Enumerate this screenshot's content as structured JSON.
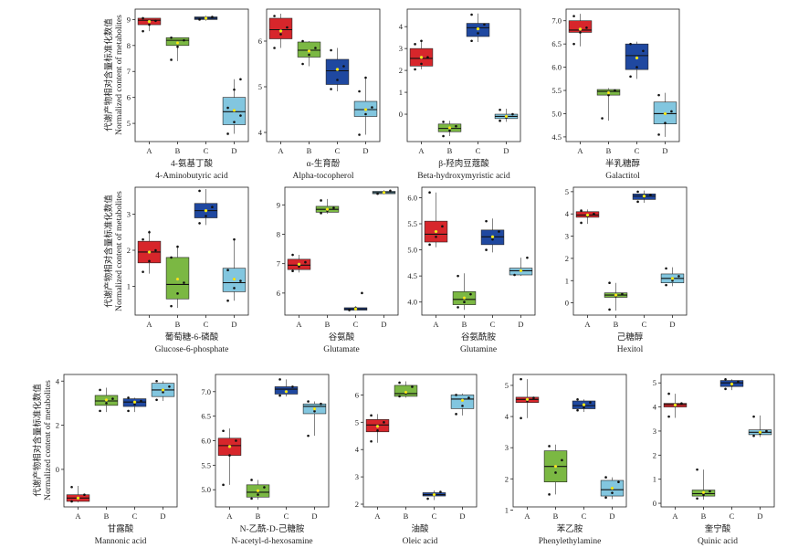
{
  "ylabel_cn": "代谢产物相对含量标准化数值",
  "ylabel_en": "Normalized content of metabolites",
  "groups": [
    "A",
    "B",
    "C",
    "D"
  ],
  "colors": {
    "A": "#d7262b",
    "B": "#7bb843",
    "C": "#1f48a0",
    "D": "#82c6df",
    "mean_marker": "#fff200",
    "points": "#111111"
  },
  "chart_data": [
    {
      "type": "box",
      "title_cn": "4-氨基丁酸",
      "title_en": "4-Aminobutyric acid",
      "yticks": [
        5,
        6,
        7,
        8,
        9
      ],
      "ylim": [
        4.3,
        9.4
      ],
      "boxes": [
        {
          "group": "A",
          "q1": 8.8,
          "median": 8.97,
          "q3": 9.05,
          "lo": 8.55,
          "hi": 9.05,
          "mean": 8.92,
          "points": [
            8.55,
            8.8,
            8.95,
            9.05
          ]
        },
        {
          "group": "B",
          "q1": 8.0,
          "median": 8.2,
          "q3": 8.3,
          "lo": 7.4,
          "hi": 8.3,
          "mean": 8.1,
          "points": [
            7.45,
            7.95,
            8.2,
            8.3
          ]
        },
        {
          "group": "C",
          "q1": 9.0,
          "median": 9.05,
          "q3": 9.1,
          "lo": 8.95,
          "hi": 9.15,
          "mean": 9.05,
          "points": [
            9.0,
            9.05,
            9.1
          ]
        },
        {
          "group": "D",
          "q1": 4.95,
          "median": 5.45,
          "q3": 6.0,
          "lo": 4.6,
          "hi": 6.7,
          "mean": 5.5,
          "points": [
            4.6,
            5.05,
            5.3,
            5.6,
            6.3,
            6.7
          ]
        }
      ]
    },
    {
      "type": "box",
      "title_cn": "α-生育酚",
      "title_en": "Alpha-tocopherol",
      "yticks": [
        4,
        5,
        6
      ],
      "ylim": [
        3.8,
        6.7
      ],
      "boxes": [
        {
          "group": "A",
          "q1": 6.05,
          "median": 6.25,
          "q3": 6.5,
          "lo": 5.85,
          "hi": 6.6,
          "mean": 6.22,
          "points": [
            5.85,
            6.15,
            6.3,
            6.55
          ]
        },
        {
          "group": "B",
          "q1": 5.65,
          "median": 5.8,
          "q3": 5.98,
          "lo": 5.45,
          "hi": 6.0,
          "mean": 5.78,
          "points": [
            5.5,
            5.7,
            5.85,
            6.0
          ]
        },
        {
          "group": "C",
          "q1": 5.05,
          "median": 5.35,
          "q3": 5.6,
          "lo": 4.9,
          "hi": 5.85,
          "mean": 5.38,
          "points": [
            4.95,
            5.15,
            5.45,
            5.8
          ]
        },
        {
          "group": "D",
          "q1": 4.35,
          "median": 4.5,
          "q3": 4.68,
          "lo": 3.95,
          "hi": 5.2,
          "mean": 4.5,
          "points": [
            3.95,
            4.4,
            4.55,
            4.9,
            5.2
          ]
        }
      ]
    },
    {
      "type": "box",
      "title_cn": "β-羟肉豆蔻酸",
      "title_en": "Beta-hydroxymyristic acid",
      "yticks": [
        0,
        1,
        2,
        3,
        4
      ],
      "ylim": [
        -1.25,
        4.8
      ],
      "boxes": [
        {
          "group": "A",
          "q1": 2.2,
          "median": 2.55,
          "q3": 3.0,
          "lo": 2.05,
          "hi": 3.35,
          "mean": 2.6,
          "points": [
            2.05,
            2.3,
            2.6,
            3.2,
            3.35
          ]
        },
        {
          "group": "B",
          "q1": -0.8,
          "median": -0.65,
          "q3": -0.45,
          "lo": -1.0,
          "hi": -0.3,
          "mean": -0.62,
          "points": [
            -1.0,
            -0.75,
            -0.55,
            -0.35
          ]
        },
        {
          "group": "C",
          "q1": 3.55,
          "median": 3.95,
          "q3": 4.15,
          "lo": 3.3,
          "hi": 4.6,
          "mean": 3.9,
          "points": [
            3.35,
            3.7,
            4.1,
            4.55
          ]
        },
        {
          "group": "D",
          "q1": -0.2,
          "median": -0.1,
          "q3": 0.0,
          "lo": -0.35,
          "hi": 0.25,
          "mean": -0.1,
          "points": [
            -0.3,
            -0.15,
            0.0,
            0.2
          ]
        }
      ]
    },
    {
      "type": "box",
      "title_cn": "半乳糖醇",
      "title_en": "Galactitol",
      "yticks": [
        4.5,
        5.0,
        5.5,
        6.0,
        6.5,
        7.0
      ],
      "ylim": [
        4.4,
        7.25
      ],
      "boxes": [
        {
          "group": "A",
          "q1": 6.75,
          "median": 6.8,
          "q3": 7.0,
          "lo": 6.45,
          "hi": 7.15,
          "mean": 6.82,
          "points": [
            6.5,
            6.75,
            6.85,
            7.1
          ]
        },
        {
          "group": "B",
          "q1": 5.4,
          "median": 5.48,
          "q3": 5.52,
          "lo": 4.85,
          "hi": 5.55,
          "mean": 5.45,
          "points": [
            4.9,
            5.4,
            5.5
          ]
        },
        {
          "group": "C",
          "q1": 5.95,
          "median": 6.25,
          "q3": 6.5,
          "lo": 5.75,
          "hi": 6.55,
          "mean": 6.2,
          "points": [
            5.8,
            6.0,
            6.35,
            6.5
          ]
        },
        {
          "group": "D",
          "q1": 4.78,
          "median": 5.0,
          "q3": 5.25,
          "lo": 4.5,
          "hi": 5.45,
          "mean": 5.0,
          "points": [
            4.55,
            4.8,
            5.05,
            5.4
          ]
        }
      ]
    },
    {
      "type": "box",
      "title_cn": "葡萄糖-6-磷酸",
      "title_en": "Glucose-6-phosphate",
      "yticks": [
        1,
        2,
        3
      ],
      "ylim": [
        0.2,
        3.75
      ],
      "boxes": [
        {
          "group": "A",
          "q1": 1.65,
          "median": 1.95,
          "q3": 2.25,
          "lo": 1.35,
          "hi": 2.55,
          "mean": 1.95,
          "points": [
            1.4,
            1.7,
            2.0,
            2.3,
            2.5
          ]
        },
        {
          "group": "B",
          "q1": 0.65,
          "median": 1.05,
          "q3": 1.8,
          "lo": 0.4,
          "hi": 2.1,
          "mean": 1.2,
          "points": [
            0.45,
            0.8,
            1.1,
            1.8,
            2.1
          ]
        },
        {
          "group": "C",
          "q1": 2.9,
          "median": 3.1,
          "q3": 3.3,
          "lo": 2.7,
          "hi": 3.7,
          "mean": 3.1,
          "points": [
            2.75,
            2.95,
            3.2,
            3.65
          ]
        },
        {
          "group": "D",
          "q1": 0.85,
          "median": 1.1,
          "q3": 1.5,
          "lo": 0.6,
          "hi": 2.3,
          "mean": 1.2,
          "points": [
            0.6,
            0.95,
            1.15,
            1.45,
            2.3
          ]
        }
      ]
    },
    {
      "type": "box",
      "title_cn": "谷氨酸",
      "title_en": "Glutamate",
      "yticks": [
        6,
        7,
        8,
        9
      ],
      "ylim": [
        5.25,
        9.6
      ],
      "boxes": [
        {
          "group": "A",
          "q1": 6.8,
          "median": 6.95,
          "q3": 7.15,
          "lo": 6.7,
          "hi": 7.3,
          "mean": 6.98,
          "points": [
            6.75,
            6.9,
            7.05,
            7.3
          ]
        },
        {
          "group": "B",
          "q1": 8.75,
          "median": 8.85,
          "q3": 8.95,
          "lo": 8.7,
          "hi": 9.2,
          "mean": 8.85,
          "points": [
            8.72,
            8.8,
            8.9,
            9.15
          ]
        },
        {
          "group": "C",
          "q1": 5.42,
          "median": 5.46,
          "q3": 5.5,
          "lo": 5.4,
          "hi": 5.55,
          "mean": 5.46,
          "points": [
            5.42,
            5.5,
            6.0
          ]
        },
        {
          "group": "D",
          "q1": 9.38,
          "median": 9.42,
          "q3": 9.46,
          "lo": 9.35,
          "hi": 9.5,
          "mean": 9.42,
          "points": [
            9.38,
            9.44,
            9.48
          ]
        }
      ]
    },
    {
      "type": "box",
      "title_cn": "谷氨酰胺",
      "title_en": "Glutamine",
      "yticks": [
        4.0,
        4.5,
        5.0,
        5.5,
        6.0
      ],
      "ylim": [
        3.75,
        6.2
      ],
      "boxes": [
        {
          "group": "A",
          "q1": 5.15,
          "median": 5.3,
          "q3": 5.55,
          "lo": 5.05,
          "hi": 6.1,
          "mean": 5.35,
          "points": [
            5.1,
            5.25,
            5.45,
            6.1
          ]
        },
        {
          "group": "B",
          "q1": 3.95,
          "median": 4.05,
          "q3": 4.2,
          "lo": 3.85,
          "hi": 4.55,
          "mean": 4.08,
          "points": [
            3.9,
            4.0,
            4.15,
            4.5
          ]
        },
        {
          "group": "C",
          "q1": 5.1,
          "median": 5.25,
          "q3": 5.38,
          "lo": 4.95,
          "hi": 5.6,
          "mean": 5.25,
          "points": [
            5.0,
            5.2,
            5.35,
            5.55
          ]
        },
        {
          "group": "D",
          "q1": 4.52,
          "median": 4.6,
          "q3": 4.65,
          "lo": 4.5,
          "hi": 4.85,
          "mean": 4.6,
          "points": [
            4.52,
            4.6,
            4.85
          ]
        }
      ]
    },
    {
      "type": "box",
      "title_cn": "己糖醇",
      "title_en": "Hexitol",
      "yticks": [
        0,
        1,
        2,
        3,
        4,
        5
      ],
      "ylim": [
        -0.55,
        5.2
      ],
      "boxes": [
        {
          "group": "A",
          "q1": 3.85,
          "median": 3.95,
          "q3": 4.1,
          "lo": 3.55,
          "hi": 4.2,
          "mean": 3.95,
          "points": [
            3.6,
            3.9,
            4.0,
            4.15
          ]
        },
        {
          "group": "B",
          "q1": 0.25,
          "median": 0.35,
          "q3": 0.45,
          "lo": -0.35,
          "hi": 0.9,
          "mean": 0.35,
          "points": [
            -0.3,
            0.3,
            0.4,
            0.9
          ]
        },
        {
          "group": "C",
          "q1": 4.65,
          "median": 4.8,
          "q3": 4.9,
          "lo": 4.5,
          "hi": 5.05,
          "mean": 4.8,
          "points": [
            4.55,
            4.75,
            4.85,
            5.0
          ]
        },
        {
          "group": "D",
          "q1": 0.9,
          "median": 1.1,
          "q3": 1.3,
          "lo": 0.75,
          "hi": 1.6,
          "mean": 1.1,
          "points": [
            0.8,
            1.0,
            1.2,
            1.55
          ]
        }
      ]
    },
    {
      "type": "box",
      "title_cn": "甘露酸",
      "title_en": "Mannonic acid",
      "yticks": [
        0,
        2,
        4
      ],
      "ylim": [
        -1.7,
        4.3
      ],
      "boxes": [
        {
          "group": "A",
          "q1": -1.45,
          "median": -1.3,
          "q3": -1.15,
          "lo": -1.5,
          "hi": -0.75,
          "mean": -1.3,
          "points": [
            -1.45,
            -1.3,
            -1.15,
            -0.8
          ]
        },
        {
          "group": "B",
          "q1": 2.9,
          "median": 3.1,
          "q3": 3.35,
          "lo": 2.6,
          "hi": 3.7,
          "mean": 3.15,
          "points": [
            2.65,
            3.0,
            3.2,
            3.6
          ]
        },
        {
          "group": "C",
          "q1": 2.85,
          "median": 3.05,
          "q3": 3.2,
          "lo": 2.6,
          "hi": 3.25,
          "mean": 3.05,
          "points": [
            2.65,
            2.95,
            3.1,
            3.25
          ]
        },
        {
          "group": "D",
          "q1": 3.3,
          "median": 3.6,
          "q3": 3.9,
          "lo": 3.1,
          "hi": 4.0,
          "mean": 3.6,
          "points": [
            3.15,
            3.5,
            3.75,
            4.0
          ]
        }
      ]
    },
    {
      "type": "box",
      "title_cn": "N-乙酰-D-己糖胺",
      "title_en": "N-acetyl-d-hexosamine",
      "yticks": [
        5.0,
        5.5,
        6.0,
        6.5,
        7.0
      ],
      "ylim": [
        4.65,
        7.35
      ],
      "boxes": [
        {
          "group": "A",
          "q1": 5.7,
          "median": 5.9,
          "q3": 6.05,
          "lo": 5.1,
          "hi": 6.25,
          "mean": 5.88,
          "points": [
            5.1,
            5.7,
            6.0,
            6.2
          ]
        },
        {
          "group": "B",
          "q1": 4.85,
          "median": 4.95,
          "q3": 5.1,
          "lo": 4.8,
          "hi": 5.2,
          "mean": 4.98,
          "points": [
            4.82,
            4.9,
            5.05,
            5.2
          ]
        },
        {
          "group": "C",
          "q1": 6.95,
          "median": 7.05,
          "q3": 7.1,
          "lo": 6.9,
          "hi": 7.25,
          "mean": 7.0,
          "points": [
            6.92,
            7.0,
            7.1,
            7.25
          ]
        },
        {
          "group": "D",
          "q1": 6.55,
          "median": 6.7,
          "q3": 6.75,
          "lo": 6.1,
          "hi": 6.8,
          "mean": 6.65,
          "points": [
            6.1,
            6.6,
            6.75,
            6.8
          ]
        }
      ]
    },
    {
      "type": "box",
      "title_cn": "油酸",
      "title_en": "Oleic acid",
      "yticks": [
        2,
        3,
        4,
        5,
        6
      ],
      "ylim": [
        1.9,
        6.75
      ],
      "boxes": [
        {
          "group": "A",
          "q1": 4.65,
          "median": 4.9,
          "q3": 5.1,
          "lo": 4.25,
          "hi": 5.3,
          "mean": 4.85,
          "points": [
            4.3,
            4.7,
            5.0,
            5.25
          ]
        },
        {
          "group": "B",
          "q1": 5.95,
          "median": 6.05,
          "q3": 6.35,
          "lo": 5.9,
          "hi": 6.5,
          "mean": 6.1,
          "points": [
            5.95,
            6.05,
            6.3,
            6.45
          ]
        },
        {
          "group": "C",
          "q1": 2.3,
          "median": 2.35,
          "q3": 2.42,
          "lo": 2.15,
          "hi": 2.5,
          "mean": 2.35,
          "points": [
            2.2,
            2.35,
            2.45
          ]
        },
        {
          "group": "D",
          "q1": 5.5,
          "median": 5.85,
          "q3": 6.0,
          "lo": 5.25,
          "hi": 6.05,
          "mean": 5.8,
          "points": [
            5.3,
            5.6,
            5.9,
            6.0
          ]
        }
      ]
    },
    {
      "type": "box",
      "title_cn": "苯乙胺",
      "title_en": "Phenylethylamine",
      "yticks": [
        1,
        2,
        3,
        4,
        5
      ],
      "ylim": [
        1.1,
        5.35
      ],
      "boxes": [
        {
          "group": "A",
          "q1": 4.45,
          "median": 4.55,
          "q3": 4.62,
          "lo": 3.95,
          "hi": 5.2,
          "mean": 4.55,
          "points": [
            3.95,
            4.5,
            4.6,
            5.2
          ]
        },
        {
          "group": "B",
          "q1": 1.9,
          "median": 2.4,
          "q3": 2.9,
          "lo": 1.5,
          "hi": 3.1,
          "mean": 2.4,
          "points": [
            1.5,
            2.2,
            2.6,
            3.05
          ]
        },
        {
          "group": "C",
          "q1": 4.25,
          "median": 4.35,
          "q3": 4.5,
          "lo": 4.15,
          "hi": 4.55,
          "mean": 4.38,
          "points": [
            4.2,
            4.3,
            4.45,
            4.55
          ]
        },
        {
          "group": "D",
          "q1": 1.45,
          "median": 1.65,
          "q3": 1.95,
          "lo": 1.35,
          "hi": 2.05,
          "mean": 1.7,
          "points": [
            1.4,
            1.55,
            1.9,
            2.05
          ]
        }
      ]
    },
    {
      "type": "box",
      "title_cn": "奎宁酸",
      "title_en": "Quinic acid",
      "yticks": [
        0,
        1,
        2,
        3,
        4,
        5
      ],
      "ylim": [
        -0.15,
        5.35
      ],
      "boxes": [
        {
          "group": "A",
          "q1": 4.0,
          "median": 4.1,
          "q3": 4.15,
          "lo": 3.55,
          "hi": 4.55,
          "mean": 4.08,
          "points": [
            3.6,
            4.05,
            4.15,
            4.55
          ]
        },
        {
          "group": "B",
          "q1": 0.3,
          "median": 0.4,
          "q3": 0.55,
          "lo": 0.15,
          "hi": 1.4,
          "mean": 0.45,
          "points": [
            0.2,
            0.35,
            0.5,
            1.4
          ]
        },
        {
          "group": "C",
          "q1": 4.85,
          "median": 5.0,
          "q3": 5.1,
          "lo": 4.7,
          "hi": 5.15,
          "mean": 4.95,
          "points": [
            4.75,
            4.9,
            5.05,
            5.15
          ]
        },
        {
          "group": "D",
          "q1": 2.85,
          "median": 2.95,
          "q3": 3.05,
          "lo": 2.75,
          "hi": 3.65,
          "mean": 2.95,
          "points": [
            2.8,
            2.9,
            3.0,
            3.6
          ]
        }
      ]
    }
  ]
}
